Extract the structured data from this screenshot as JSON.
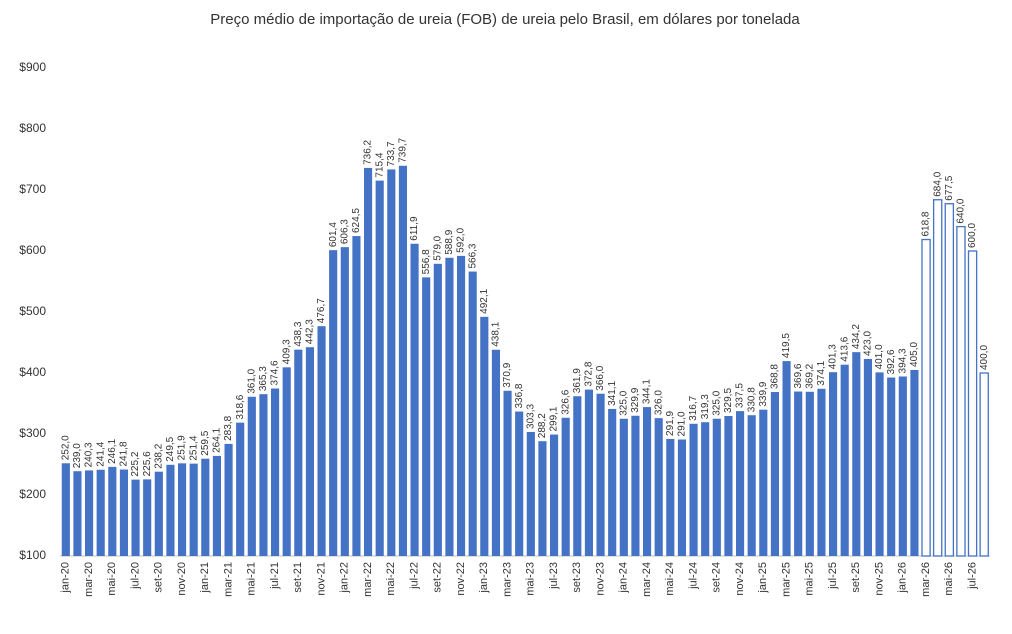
{
  "chart_data": {
    "type": "bar",
    "title": "Preço médio de importação de ureia (FOB) de ureia pelo Brasil, em dólares por tonelada",
    "categories": [
      "jan-20",
      null,
      "mar-20",
      null,
      "mai-20",
      null,
      "jul-20",
      null,
      "set-20",
      null,
      "nov-20",
      null,
      "jan-21",
      null,
      "mar-21",
      null,
      "mai-21",
      null,
      "jul-21",
      null,
      "set-21",
      null,
      "nov-21",
      null,
      "jan-22",
      null,
      "mar-22",
      null,
      "mai-22",
      null,
      "jul-22",
      null,
      "set-22",
      null,
      "nov-22",
      null,
      "jan-23",
      null,
      "mar-23",
      null,
      "mai-23",
      null,
      "jul-23",
      null,
      "set-23",
      null,
      "nov-23",
      null,
      "jan-24",
      null,
      "mar-24",
      null,
      "mai-24",
      null,
      "jul-24",
      null,
      "set-24",
      null,
      "nov-24",
      null,
      "jan-25",
      null,
      "mar-25",
      null,
      "mai-25",
      null,
      "jul-25",
      null,
      "set-25",
      null,
      "nov-25",
      null,
      "jan-26",
      null,
      "mar-26",
      null,
      "mai-26",
      null,
      "jul-26",
      null
    ],
    "series": [
      {
        "color": "#4472c4",
        "fill": "solid",
        "values": [
          252.0,
          239.0,
          240.3,
          241.4,
          246.1,
          241.8,
          225.2,
          225.6,
          238.2,
          249.5,
          251.9,
          251.4,
          259.5,
          264.1,
          283.8,
          318.6,
          361.0,
          365.3,
          374.6,
          409.3,
          438.3,
          442.3,
          476.7,
          601.4,
          606.3,
          624.5,
          736.2,
          715.4,
          733.7,
          739.7,
          611.9,
          556.8,
          579.0,
          588.9,
          592.0,
          566.3,
          492.1,
          438.1,
          370.9,
          336.8,
          303.3,
          288.2,
          299.1,
          326.6,
          361.9,
          372.8,
          366.0,
          341.1,
          325.0,
          329.9,
          344.1,
          326.0,
          291.9,
          291.0,
          316.7,
          319.3,
          325.0,
          329.5,
          337.5,
          330.8,
          339.9,
          368.8,
          419.5,
          369.6,
          369.2,
          374.1,
          401.3,
          413.6,
          434.2,
          423.0,
          401.0,
          392.6,
          394.3,
          405.0,
          null,
          null,
          null,
          null,
          null,
          null
        ],
        "value_labels": [
          "252,0",
          "239,0",
          "240,3",
          "241,4",
          "246,1",
          "241,8",
          "225,2",
          "225,6",
          "238,2",
          "249,5",
          "251,9",
          "251,4",
          "259,5",
          "264,1",
          "283,8",
          "318,6",
          "361,0",
          "365,3",
          "374,6",
          "409,3",
          "438,3",
          "442,3",
          "476,7",
          "601,4",
          "606,3",
          "624,5",
          "736,2",
          "715,4",
          "733,7",
          "739,7",
          "611,9",
          "556,8",
          "579,0",
          "588,9",
          "592,0",
          "566,3",
          "492,1",
          "438,1",
          "370,9",
          "336,8",
          "303,3",
          "288,2",
          "299,1",
          "326,6",
          "361,9",
          "372,8",
          "366,0",
          "341,1",
          "325,0",
          "329,9",
          "344,1",
          "326,0",
          "291,9",
          "291,0",
          "316,7",
          "319,3",
          "325,0",
          "329,5",
          "337,5",
          "330,8",
          "339,9",
          "368,8",
          "419,5",
          "369,6",
          "369,2",
          "374,1",
          "401,3",
          "413,6",
          "434,2",
          "423,0",
          "401,0",
          "392,6",
          "394,3",
          "405,0",
          null,
          null,
          null,
          null,
          null,
          null
        ]
      },
      {
        "color": "#4472c4",
        "fill": "outline",
        "values": [
          null,
          null,
          null,
          null,
          null,
          null,
          null,
          null,
          null,
          null,
          null,
          null,
          null,
          null,
          null,
          null,
          null,
          null,
          null,
          null,
          null,
          null,
          null,
          null,
          null,
          null,
          null,
          null,
          null,
          null,
          null,
          null,
          null,
          null,
          null,
          null,
          null,
          null,
          null,
          null,
          null,
          null,
          null,
          null,
          null,
          null,
          null,
          null,
          null,
          null,
          null,
          null,
          null,
          null,
          null,
          null,
          null,
          null,
          null,
          null,
          null,
          null,
          null,
          null,
          null,
          null,
          null,
          null,
          null,
          null,
          null,
          null,
          null,
          null,
          618.8,
          684.0,
          677.5,
          640.0,
          600.0,
          400.0
        ],
        "value_labels": [
          null,
          null,
          null,
          null,
          null,
          null,
          null,
          null,
          null,
          null,
          null,
          null,
          null,
          null,
          null,
          null,
          null,
          null,
          null,
          null,
          null,
          null,
          null,
          null,
          null,
          null,
          null,
          null,
          null,
          null,
          null,
          null,
          null,
          null,
          null,
          null,
          null,
          null,
          null,
          null,
          null,
          null,
          null,
          null,
          null,
          null,
          null,
          null,
          null,
          null,
          null,
          null,
          null,
          null,
          null,
          null,
          null,
          null,
          null,
          null,
          null,
          null,
          null,
          null,
          null,
          null,
          null,
          null,
          null,
          null,
          null,
          null,
          null,
          null,
          "618,8",
          "684,0",
          "677,5",
          "640,0",
          "600,0",
          "400,0"
        ]
      }
    ],
    "ylim": [
      100,
      900
    ],
    "yticks": [
      {
        "value": 100,
        "label": "$100"
      },
      {
        "value": 200,
        "label": "$200"
      },
      {
        "value": 300,
        "label": "$300"
      },
      {
        "value": 400,
        "label": "$400"
      },
      {
        "value": 500,
        "label": "$500"
      },
      {
        "value": 600,
        "label": "$600"
      },
      {
        "value": 700,
        "label": "$700"
      },
      {
        "value": 800,
        "label": "$800"
      },
      {
        "value": 900,
        "label": "$900"
      }
    ],
    "grid": false
  }
}
